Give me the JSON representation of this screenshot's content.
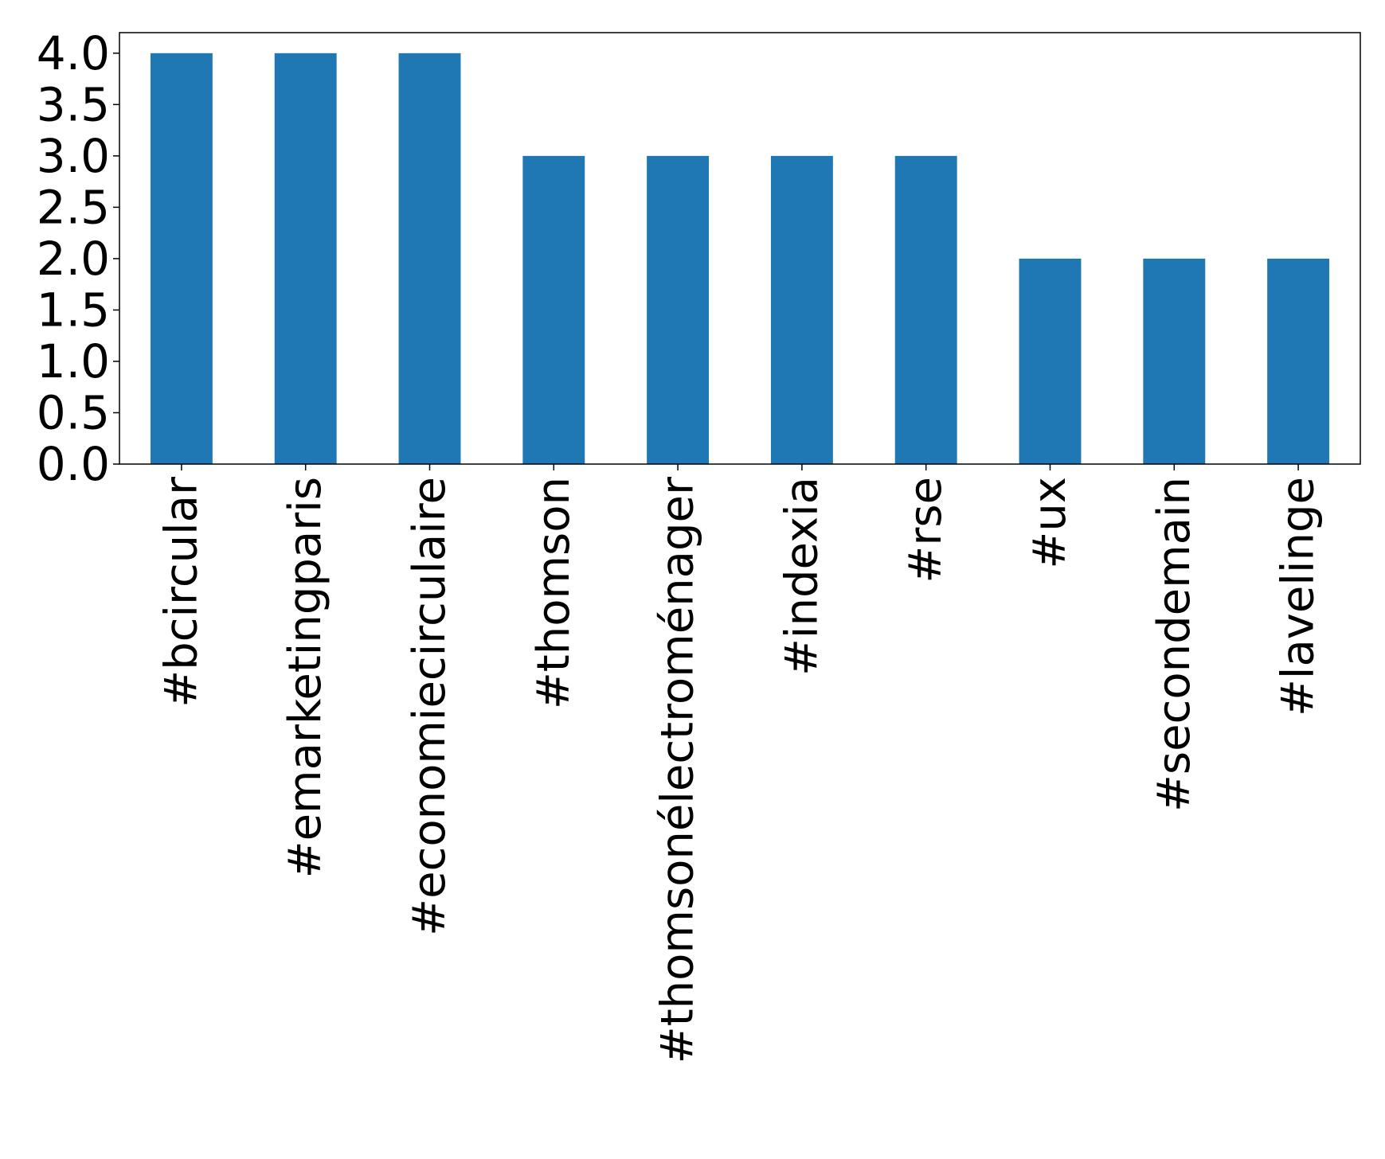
{
  "chart_data": {
    "type": "bar",
    "title": "",
    "xlabel": "",
    "ylabel": "",
    "categories": [
      "#bcircular",
      "#emarketingparis",
      "#economiecirculaire",
      "#thomson",
      "#thomsonélectroménager",
      "#indexia",
      "#rse",
      "#ux",
      "#secondemain",
      "#lavelinge"
    ],
    "values": [
      4,
      4,
      4,
      3,
      3,
      3,
      3,
      2,
      2,
      2
    ],
    "ylim": [
      0,
      4.2
    ],
    "yticks": [
      0.0,
      0.5,
      1.0,
      1.5,
      2.0,
      2.5,
      3.0,
      3.5,
      4.0
    ],
    "ytick_labels": [
      "0.0",
      "0.5",
      "1.0",
      "1.5",
      "2.0",
      "2.5",
      "3.0",
      "3.5",
      "4.0"
    ],
    "grid": false,
    "legend": "none",
    "bar_color": "#1f77b4",
    "xtick_rotation_deg": 90
  }
}
